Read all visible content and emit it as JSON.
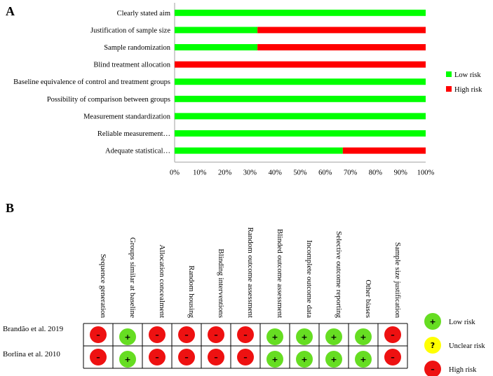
{
  "colors": {
    "low": "#00ff00",
    "high": "#ff0000",
    "unclear": "#ffff00",
    "circle_low": "#66dd22",
    "circle_high": "#ee1111"
  },
  "chart_data": [
    {
      "type": "bar",
      "orientation": "horizontal-stacked",
      "panel": "A",
      "categories": [
        "Clearly stated aim",
        "Justification of sample size",
        "Sample randomization",
        "Blind treatment allocation",
        "Baseline equivalence of control and treatment groups",
        "Possibility of comparison between groups",
        "Measurement standardization",
        "Reliable measurement…",
        "Adequate statistical…"
      ],
      "series": [
        {
          "name": "Low risk",
          "values": [
            100,
            33,
            33,
            0,
            100,
            100,
            100,
            100,
            67
          ]
        },
        {
          "name": "High risk",
          "values": [
            0,
            67,
            67,
            100,
            0,
            0,
            0,
            0,
            33
          ]
        }
      ],
      "xlim": [
        0,
        100
      ],
      "xticks": [
        "0%",
        "10%",
        "20%",
        "30%",
        "40%",
        "50%",
        "60%",
        "70%",
        "80%",
        "90%",
        "100%"
      ],
      "legend_position": "right"
    },
    {
      "type": "table",
      "panel": "B",
      "columns": [
        "Sequence generation",
        "Groups similar at baseline",
        "Allocation concealment",
        "Random housing",
        "Blinding interventions",
        "Random outcome assessment",
        "Blinded outcome assessment",
        "Incomplete outcome data",
        "Selective outcome reporting",
        "Other biases",
        "Sample size justification"
      ],
      "rows": [
        {
          "study": "Brandão et al. 2019",
          "ratings": [
            "high",
            "low",
            "high",
            "high",
            "high",
            "high",
            "low",
            "low",
            "low",
            "low",
            "high"
          ]
        },
        {
          "study": "Borlina et al. 2010",
          "ratings": [
            "high",
            "low",
            "high",
            "high",
            "high",
            "high",
            "low",
            "low",
            "low",
            "low",
            "high"
          ]
        }
      ],
      "symbols": {
        "low": "+",
        "unclear": "?",
        "high": "–"
      },
      "legend": [
        {
          "key": "low",
          "label": "Low risk"
        },
        {
          "key": "unclear",
          "label": "Unclear risk"
        },
        {
          "key": "high",
          "label": "High risk"
        }
      ]
    }
  ]
}
